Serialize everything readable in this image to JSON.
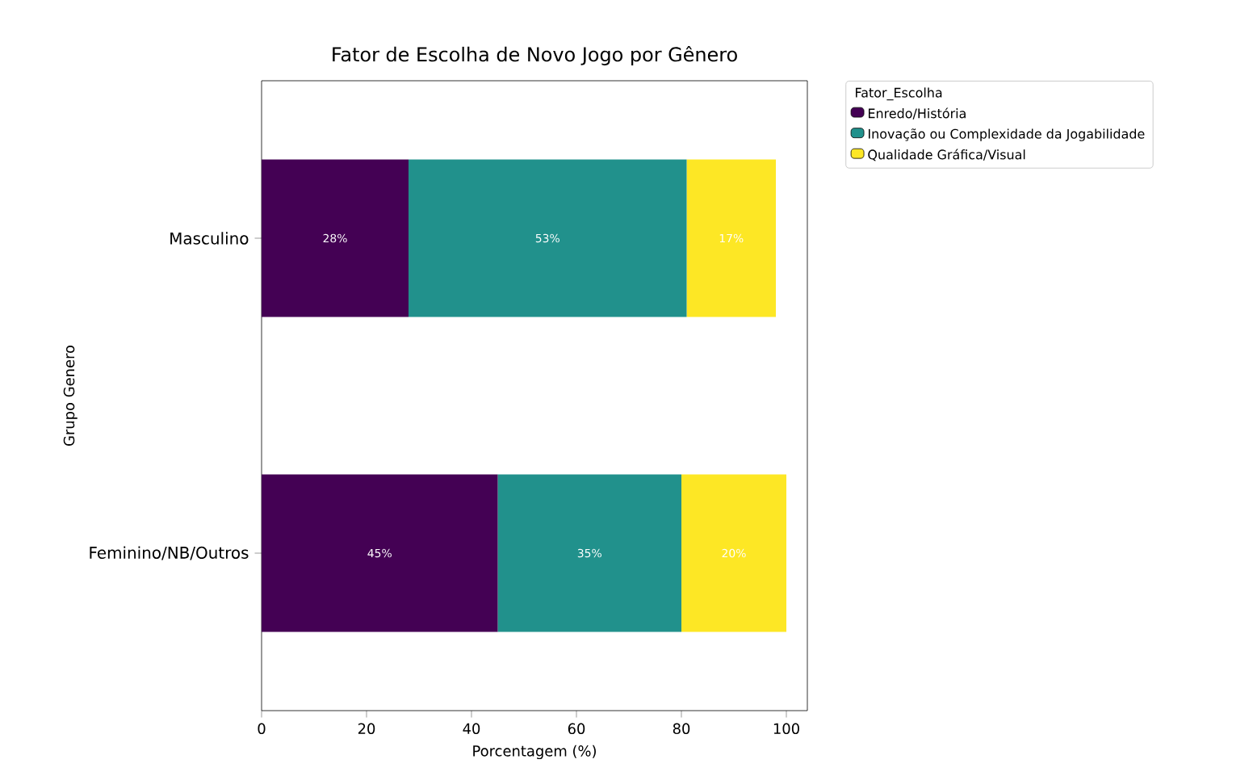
{
  "chart_data": {
    "type": "bar",
    "orientation": "horizontal",
    "stacked": true,
    "title": "Fator de Escolha de Novo Jogo por Gênero",
    "xlabel": "Porcentagem (%)",
    "ylabel": "Grupo Genero",
    "legend_title": "Fator_Escolha",
    "legend": "top right",
    "categories": [
      "Masculino",
      "Feminino/NB/Outros"
    ],
    "series": [
      {
        "name": "Enredo/História",
        "color": "#440154",
        "values": [
          28,
          45
        ],
        "value_labels": [
          "28%",
          "45%"
        ]
      },
      {
        "name": "Inovação ou Complexidade da Jogabilidade",
        "color": "#21918c",
        "values": [
          53,
          35
        ],
        "value_labels": [
          "53%",
          "35%"
        ]
      },
      {
        "name": "Qualidade Gráfica/Visual",
        "color": "#fde725",
        "values": [
          17,
          20
        ],
        "value_labels": [
          "17%",
          "20%"
        ]
      }
    ],
    "xlim": [
      0,
      104
    ],
    "xticks": [
      0,
      20,
      40,
      60,
      80,
      100
    ]
  }
}
